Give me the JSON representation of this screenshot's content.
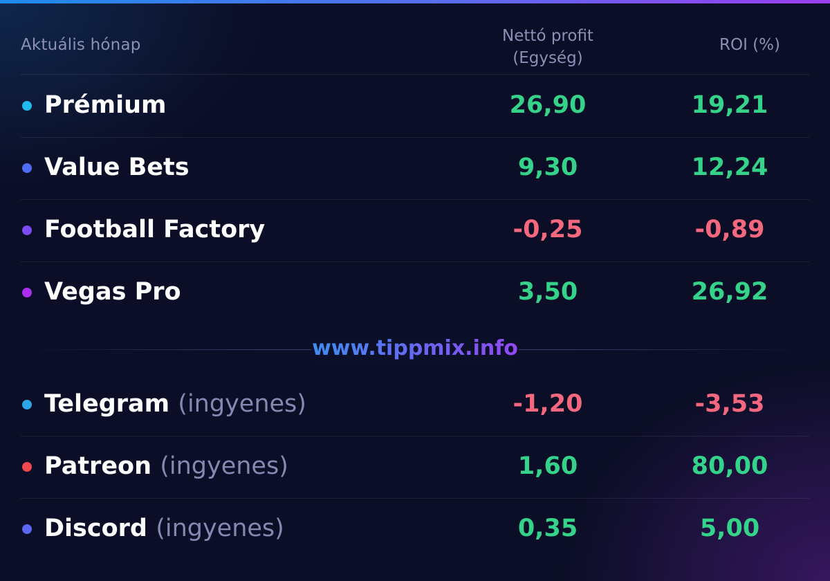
{
  "header": {
    "month_label": "Aktuális hónap",
    "profit_label_line1": "Nettó profit",
    "profit_label_line2": "(Egység)",
    "roi_label": "ROI (%)"
  },
  "rows": [
    {
      "name": "Prémium",
      "suffix": "",
      "dot_color": "#22b8f0",
      "profit": "26,90",
      "roi": "19,21",
      "profit_sign": "pos",
      "roi_sign": "pos"
    },
    {
      "name": "Value Bets",
      "suffix": "",
      "dot_color": "#4f6cf2",
      "profit": "9,30",
      "roi": "12,24",
      "profit_sign": "pos",
      "roi_sign": "pos"
    },
    {
      "name": "Football Factory",
      "suffix": "",
      "dot_color": "#7b4cf2",
      "profit": "-0,25",
      "roi": "-0,89",
      "profit_sign": "neg",
      "roi_sign": "neg"
    },
    {
      "name": "Vegas Pro",
      "suffix": "",
      "dot_color": "#a92ef0",
      "profit": "3,50",
      "roi": "26,92",
      "profit_sign": "pos",
      "roi_sign": "pos"
    },
    {
      "name": "Telegram",
      "suffix": "(ingyenes)",
      "dot_color": "#2ba6e6",
      "profit": "-1,20",
      "roi": "-3,53",
      "profit_sign": "neg",
      "roi_sign": "neg"
    },
    {
      "name": "Patreon",
      "suffix": "(ingyenes)",
      "dot_color": "#f2484e",
      "profit": "1,60",
      "roi": "80,00",
      "profit_sign": "pos",
      "roi_sign": "pos"
    },
    {
      "name": "Discord",
      "suffix": "(ingyenes)",
      "dot_color": "#5b68ef",
      "profit": "0,35",
      "roi": "5,00",
      "profit_sign": "pos",
      "roi_sign": "pos"
    }
  ],
  "watermark": "www.tippmix.info",
  "colors": {
    "positive": "#35d38a",
    "negative": "#f3687e",
    "header_text": "#8b90b4",
    "background": "#0b0e26"
  }
}
